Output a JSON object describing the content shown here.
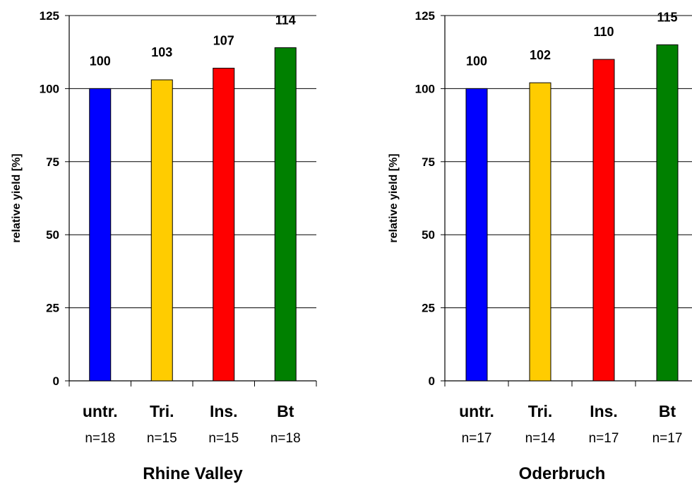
{
  "chart_data": [
    {
      "type": "bar",
      "title": "Rhine Valley",
      "ylabel": "relative yield [%]",
      "ylim": [
        0,
        125
      ],
      "yticks": [
        0,
        25,
        50,
        75,
        100,
        125
      ],
      "grid": true,
      "categories": [
        "untr.",
        "Tri.",
        "Ins.",
        "Bt"
      ],
      "sample_sizes": [
        "n=18",
        "n=15",
        "n=15",
        "n=18"
      ],
      "values": [
        100,
        103,
        107,
        114
      ],
      "colors": [
        "#0000ff",
        "#ffcc00",
        "#ff0000",
        "#008000"
      ]
    },
    {
      "type": "bar",
      "title": "Oderbruch",
      "ylabel": "relative yield [%]",
      "ylim": [
        0,
        125
      ],
      "yticks": [
        0,
        25,
        50,
        75,
        100,
        125
      ],
      "grid": true,
      "categories": [
        "untr.",
        "Tri.",
        "Ins.",
        "Bt"
      ],
      "sample_sizes": [
        "n=17",
        "n=14",
        "n=17",
        "n=17"
      ],
      "values": [
        100,
        102,
        110,
        115
      ],
      "colors": [
        "#0000ff",
        "#ffcc00",
        "#ff0000",
        "#008000"
      ]
    }
  ]
}
